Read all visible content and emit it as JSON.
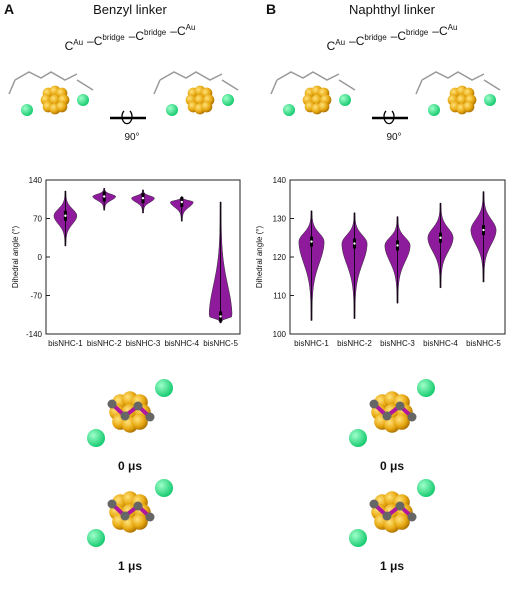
{
  "panels": [
    {
      "label": "A",
      "title": "Benzyl linker",
      "times": [
        "0 μs",
        "1 μs"
      ]
    },
    {
      "label": "B",
      "title": "Naphthyl linker",
      "times": [
        "0 μs",
        "1 μs"
      ]
    }
  ],
  "formula": {
    "parts": [
      {
        "base": "C",
        "sup": "Au"
      },
      {
        "base": "C",
        "sup": "bridge"
      },
      {
        "base": "C",
        "sup": "bridge"
      },
      {
        "base": "C",
        "sup": "Au"
      }
    ],
    "separator": "–",
    "rotation": "90°"
  },
  "chart_data": [
    {
      "type": "violin",
      "y_label": "Dihedral angle (°)",
      "color": "#8e1a9c",
      "categories": [
        "bisNHC-1",
        "bisNHC-2",
        "bisNHC-3",
        "bisNHC-4",
        "bisNHC-5"
      ],
      "min": [
        20,
        85,
        80,
        65,
        -120
      ],
      "median": [
        75,
        110,
        107,
        100,
        -108
      ],
      "max": [
        120,
        125,
        122,
        110,
        100
      ],
      "ylim": [
        -140,
        140
      ],
      "yticks": [
        -140,
        -70,
        0,
        70,
        140
      ]
    },
    {
      "type": "violin",
      "y_label": "Dihedral angle (°)",
      "color": "#8e1a9c",
      "categories": [
        "bisNHC-1",
        "bisNHC-2",
        "bisNHC-3",
        "bisNHC-4",
        "bisNHC-5"
      ],
      "min": [
        103.5,
        104,
        108,
        112,
        113.5
      ],
      "median": [
        124,
        123.5,
        123,
        125,
        127
      ],
      "max": [
        132,
        131.5,
        130.5,
        134,
        137
      ],
      "ylim": [
        100,
        140
      ],
      "yticks": [
        100,
        110,
        120,
        130,
        140
      ]
    }
  ]
}
